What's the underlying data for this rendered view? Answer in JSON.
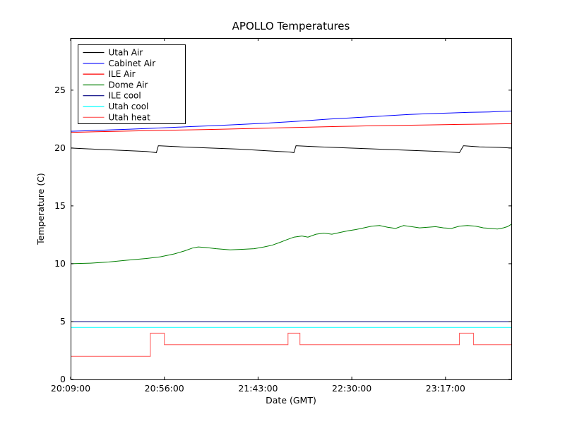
{
  "figure": {
    "background": "#ffffff"
  },
  "chart_data": {
    "type": "line",
    "title": "APOLLO Temperatures",
    "xlabel": "Date (GMT)",
    "ylabel": "Temperature (C)",
    "x_unit": "minutes since 20:09:00 GMT",
    "xlim": [
      0,
      221
    ],
    "ylim": [
      0,
      29.5
    ],
    "grid": false,
    "legend": {
      "position": "upper left"
    },
    "xticks": [
      {
        "value": 0,
        "label": "20:09:00"
      },
      {
        "value": 47,
        "label": "20:56:00"
      },
      {
        "value": 94,
        "label": "21:43:00"
      },
      {
        "value": 141,
        "label": "22:30:00"
      },
      {
        "value": 188,
        "label": "23:17:00"
      }
    ],
    "yticks": [
      {
        "value": 0,
        "label": "0"
      },
      {
        "value": 5,
        "label": "5"
      },
      {
        "value": 10,
        "label": "10"
      },
      {
        "value": 15,
        "label": "15"
      },
      {
        "value": 20,
        "label": "20"
      },
      {
        "value": 25,
        "label": "25"
      }
    ],
    "series": [
      {
        "name": "Utah Air",
        "color": "#000000",
        "points": [
          [
            0,
            20.0
          ],
          [
            12,
            19.9
          ],
          [
            25,
            19.8
          ],
          [
            38,
            19.7
          ],
          [
            43,
            19.6
          ],
          [
            44,
            20.2
          ],
          [
            55,
            20.1
          ],
          [
            70,
            20.0
          ],
          [
            85,
            19.9
          ],
          [
            100,
            19.75
          ],
          [
            110,
            19.65
          ],
          [
            112,
            19.6
          ],
          [
            113,
            20.2
          ],
          [
            125,
            20.1
          ],
          [
            140,
            20.0
          ],
          [
            155,
            19.9
          ],
          [
            170,
            19.8
          ],
          [
            185,
            19.7
          ],
          [
            195,
            19.6
          ],
          [
            197,
            20.2
          ],
          [
            205,
            20.1
          ],
          [
            215,
            20.05
          ],
          [
            221,
            20.0
          ]
        ]
      },
      {
        "name": "Cabinet Air",
        "color": "#0000ff",
        "points": [
          [
            0,
            21.45
          ],
          [
            10,
            21.5
          ],
          [
            20,
            21.57
          ],
          [
            30,
            21.63
          ],
          [
            40,
            21.7
          ],
          [
            50,
            21.77
          ],
          [
            60,
            21.85
          ],
          [
            70,
            21.92
          ],
          [
            80,
            22.0
          ],
          [
            90,
            22.08
          ],
          [
            100,
            22.17
          ],
          [
            110,
            22.27
          ],
          [
            120,
            22.38
          ],
          [
            130,
            22.5
          ],
          [
            140,
            22.6
          ],
          [
            150,
            22.7
          ],
          [
            160,
            22.8
          ],
          [
            170,
            22.9
          ],
          [
            180,
            22.97
          ],
          [
            190,
            23.03
          ],
          [
            200,
            23.08
          ],
          [
            210,
            23.12
          ],
          [
            221,
            23.2
          ]
        ]
      },
      {
        "name": "ILE Air",
        "color": "#ff0000",
        "points": [
          [
            0,
            21.35
          ],
          [
            15,
            21.42
          ],
          [
            30,
            21.47
          ],
          [
            45,
            21.52
          ],
          [
            60,
            21.57
          ],
          [
            75,
            21.62
          ],
          [
            90,
            21.68
          ],
          [
            105,
            21.74
          ],
          [
            120,
            21.8
          ],
          [
            135,
            21.86
          ],
          [
            150,
            21.92
          ],
          [
            165,
            21.96
          ],
          [
            180,
            22.0
          ],
          [
            195,
            22.04
          ],
          [
            210,
            22.07
          ],
          [
            221,
            22.1
          ]
        ]
      },
      {
        "name": "Dome Air",
        "color": "#007f00",
        "points": [
          [
            0,
            10.0
          ],
          [
            10,
            10.05
          ],
          [
            19,
            10.15
          ],
          [
            28,
            10.3
          ],
          [
            38,
            10.45
          ],
          [
            45,
            10.6
          ],
          [
            52,
            10.85
          ],
          [
            57,
            11.1
          ],
          [
            61,
            11.35
          ],
          [
            64,
            11.45
          ],
          [
            68,
            11.4
          ],
          [
            73,
            11.3
          ],
          [
            80,
            11.2
          ],
          [
            87,
            11.25
          ],
          [
            92,
            11.3
          ],
          [
            97,
            11.45
          ],
          [
            101,
            11.6
          ],
          [
            105,
            11.85
          ],
          [
            108,
            12.05
          ],
          [
            112,
            12.3
          ],
          [
            116,
            12.4
          ],
          [
            119,
            12.3
          ],
          [
            123,
            12.55
          ],
          [
            127,
            12.65
          ],
          [
            131,
            12.55
          ],
          [
            135,
            12.7
          ],
          [
            139,
            12.85
          ],
          [
            143,
            12.95
          ],
          [
            147,
            13.1
          ],
          [
            151,
            13.25
          ],
          [
            155,
            13.3
          ],
          [
            159,
            13.15
          ],
          [
            163,
            13.05
          ],
          [
            167,
            13.3
          ],
          [
            171,
            13.2
          ],
          [
            175,
            13.1
          ],
          [
            179,
            13.15
          ],
          [
            183,
            13.2
          ],
          [
            187,
            13.1
          ],
          [
            191,
            13.05
          ],
          [
            195,
            13.25
          ],
          [
            199,
            13.3
          ],
          [
            203,
            13.25
          ],
          [
            207,
            13.1
          ],
          [
            211,
            13.05
          ],
          [
            214,
            13.0
          ],
          [
            217,
            13.1
          ],
          [
            219,
            13.2
          ],
          [
            221,
            13.4
          ]
        ]
      },
      {
        "name": "ILE cool",
        "color": "#000080",
        "points": [
          [
            0,
            5.0
          ],
          [
            221,
            5.0
          ]
        ]
      },
      {
        "name": "Utah cool",
        "color": "#00ffff",
        "points": [
          [
            0,
            4.5
          ],
          [
            221,
            4.5
          ]
        ]
      },
      {
        "name": "Utah heat",
        "color": "#ff5555",
        "points": [
          [
            0,
            2.0
          ],
          [
            40,
            2.0
          ],
          [
            40,
            4.0
          ],
          [
            47,
            4.0
          ],
          [
            47,
            3.0
          ],
          [
            109,
            3.0
          ],
          [
            109,
            4.0
          ],
          [
            115,
            4.0
          ],
          [
            115,
            3.0
          ],
          [
            195,
            3.0
          ],
          [
            195,
            4.0
          ],
          [
            202,
            4.0
          ],
          [
            202,
            3.0
          ],
          [
            221,
            3.0
          ]
        ]
      }
    ]
  }
}
